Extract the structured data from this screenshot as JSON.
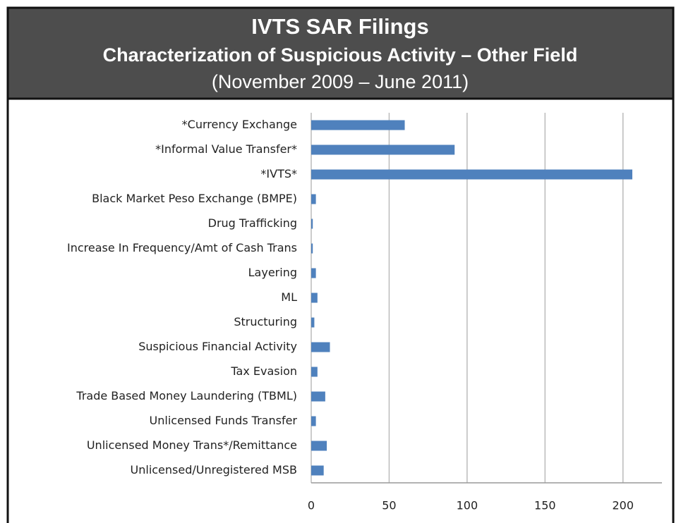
{
  "chart_data": {
    "type": "bar",
    "orientation": "horizontal",
    "title": "IVTS SAR Filings",
    "subtitle": "Characterization of Suspicious Activity – Other Field",
    "date_range": "(November 2009 – June 2011)",
    "categories": [
      "*Currency Exchange",
      "*Informal Value Transfer*",
      "*IVTS*",
      "Black Market Peso Exchange (BMPE)",
      "Drug Trafficking",
      "Increase In Frequency/Amt of Cash Trans",
      "Layering",
      "ML",
      "Structuring",
      "Suspicious Financial Activity",
      "Tax Evasion",
      "Trade Based Money Laundering (TBML)",
      "Unlicensed Funds Transfer",
      "Unlicensed Money Trans*/Remittance",
      "Unlicensed/Unregistered MSB"
    ],
    "values": [
      60,
      92,
      206,
      3,
      1,
      1,
      3,
      4,
      2,
      12,
      4,
      9,
      3,
      10,
      8
    ],
    "color": "#4f81bd",
    "xlim": [
      0,
      225
    ],
    "xticks": [
      0,
      50,
      100,
      150,
      200
    ],
    "grid": true
  }
}
